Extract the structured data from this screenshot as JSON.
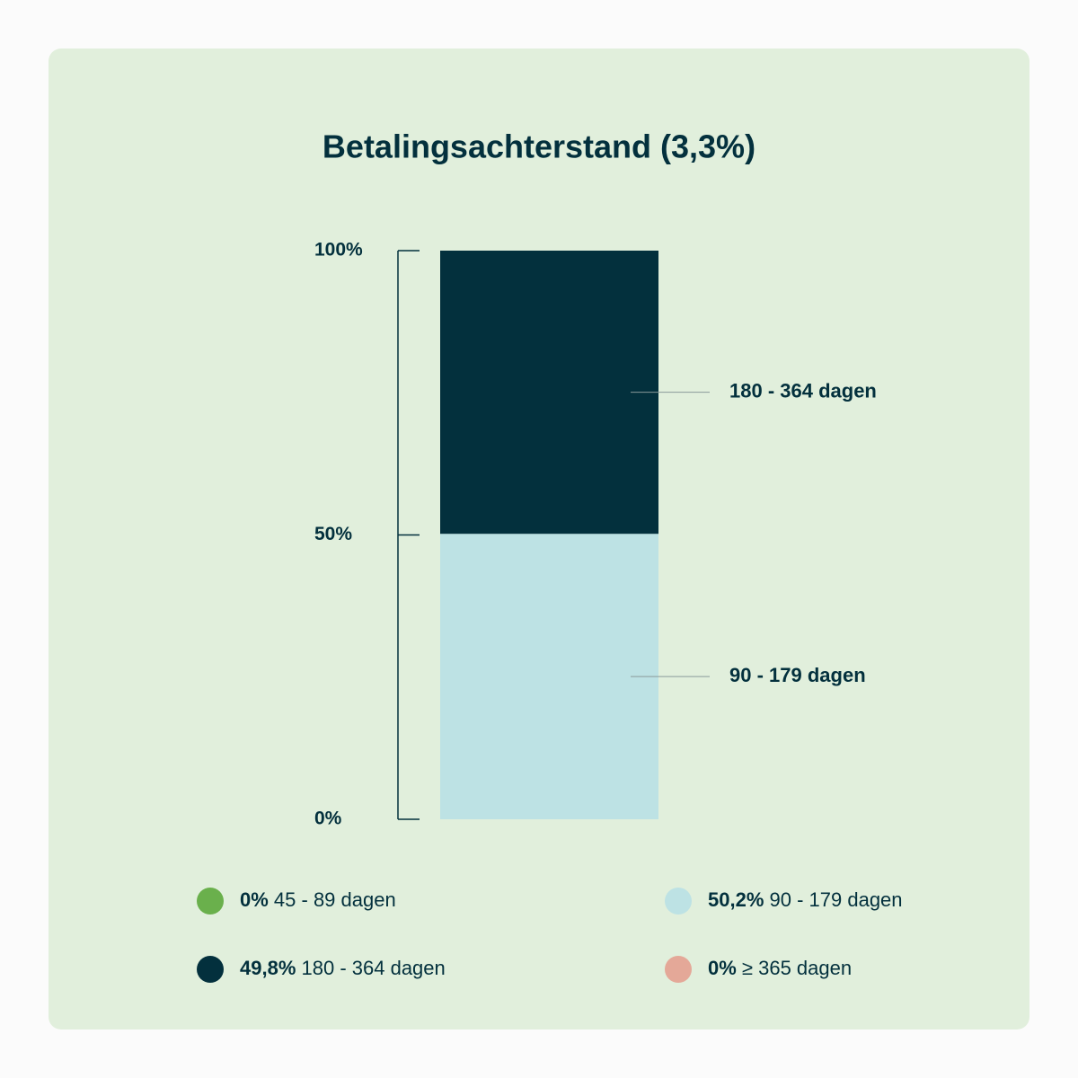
{
  "chart_data": {
    "type": "stacked_bar",
    "title": "Betalingsachterstand (3,3%)",
    "ylim": [
      0,
      100
    ],
    "yticks": [
      {
        "value": 0,
        "label": "0%"
      },
      {
        "value": 50,
        "label": "50%"
      },
      {
        "value": 100,
        "label": "100%"
      }
    ],
    "series": [
      {
        "name": "45 - 89 dagen",
        "color": "#6ab04c",
        "values": [
          0
        ],
        "value_labels": [
          "0%"
        ]
      },
      {
        "name": "90 - 179 dagen",
        "color": "#bde2e4",
        "values": [
          50.2
        ],
        "value_labels": [
          "50,2%"
        ]
      },
      {
        "name": "180 - 364 dagen",
        "color": "#03303d",
        "values": [
          49.8
        ],
        "value_labels": [
          "49,8%"
        ]
      },
      {
        "name": "≥ 365 dagen",
        "color": "#e4a898",
        "values": [
          0
        ],
        "value_labels": [
          "0%"
        ]
      }
    ]
  }
}
